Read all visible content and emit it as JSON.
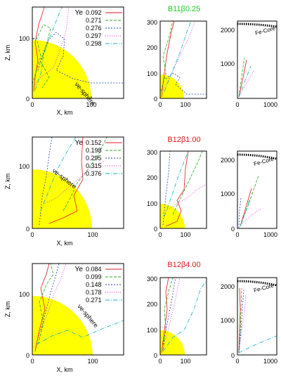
{
  "chart_data": {
    "type": "line",
    "rows": [
      {
        "model": "B11β0.25",
        "model_color": "#22cc22",
        "sphere_label": "νe-sphere",
        "legend_title": "Ye",
        "series": [
          {
            "name": "0.092",
            "color": "#e41a1c",
            "dash": ""
          },
          {
            "name": "0.271",
            "color": "#22aa22",
            "dash": "4,2"
          },
          {
            "name": "0.276",
            "color": "#1f3fbf",
            "dash": "2,2"
          },
          {
            "name": "0.297",
            "color": "#e020e0",
            "dash": "1,2"
          },
          {
            "name": "0.298",
            "color": "#10b0c0",
            "dash": "6,2,1,2"
          }
        ],
        "panels": [
          {
            "xlabel": "X, km",
            "ylabel": "Z, km",
            "xticks": [
              "0",
              "100"
            ],
            "yticks": [
              "0",
              "100"
            ]
          },
          {
            "xticks": [
              "0",
              "100"
            ],
            "yticks": [
              "0",
              "100",
              "200",
              "300"
            ]
          },
          {
            "xticks": [
              "0",
              "1000"
            ],
            "yticks": [
              "1000",
              "2000"
            ],
            "core_label": "Fe-Core"
          }
        ]
      },
      {
        "model": "B12β1.00",
        "model_color": "#e41a1c",
        "sphere_label": "νe-sphere",
        "legend_title": "Ye",
        "series": [
          {
            "name": "0.152",
            "color": "#e41a1c",
            "dash": ""
          },
          {
            "name": "0.198",
            "color": "#22aa22",
            "dash": "4,2"
          },
          {
            "name": "0.295",
            "color": "#1f3fbf",
            "dash": "2,2"
          },
          {
            "name": "0.315",
            "color": "#e020e0",
            "dash": "1,2"
          },
          {
            "name": "0.376",
            "color": "#10b0c0",
            "dash": "6,2,1,2"
          }
        ],
        "panels": [
          {
            "xlabel": "X, km",
            "ylabel": "Z, km",
            "xticks": [
              "0",
              "100"
            ],
            "yticks": [
              "0",
              "100"
            ]
          },
          {
            "xticks": [
              "0",
              "100"
            ],
            "yticks": [
              "0",
              "100",
              "200",
              "300"
            ]
          },
          {
            "xticks": [
              "0",
              "1000"
            ],
            "yticks": [
              "0",
              "1000",
              "2000"
            ],
            "core_label": "Fe-Core"
          }
        ]
      },
      {
        "model": "B12β4.00",
        "model_color": "#e41a1c",
        "sphere_label": "νe-sphere",
        "legend_title": "Ye",
        "series": [
          {
            "name": "0.084",
            "color": "#e41a1c",
            "dash": ""
          },
          {
            "name": "0.099",
            "color": "#22aa22",
            "dash": "4,2"
          },
          {
            "name": "0.148",
            "color": "#1f3fbf",
            "dash": "2,2"
          },
          {
            "name": "0.178",
            "color": "#e020e0",
            "dash": "1,2"
          },
          {
            "name": "0.271",
            "color": "#10b0c0",
            "dash": "6,2,1,2"
          }
        ],
        "panels": [
          {
            "xlabel": "X, km",
            "ylabel": "Z, km",
            "xticks": [
              "0",
              "100"
            ],
            "yticks": [
              "0",
              "100"
            ]
          },
          {
            "xticks": [
              "0",
              "100"
            ],
            "yticks": [
              "0",
              "100",
              "200",
              "300"
            ]
          },
          {
            "xticks": [
              "0",
              "1000"
            ],
            "yticks": [
              "0",
              "1000",
              "2000"
            ],
            "core_label": "Fe-Core"
          }
        ]
      }
    ]
  }
}
